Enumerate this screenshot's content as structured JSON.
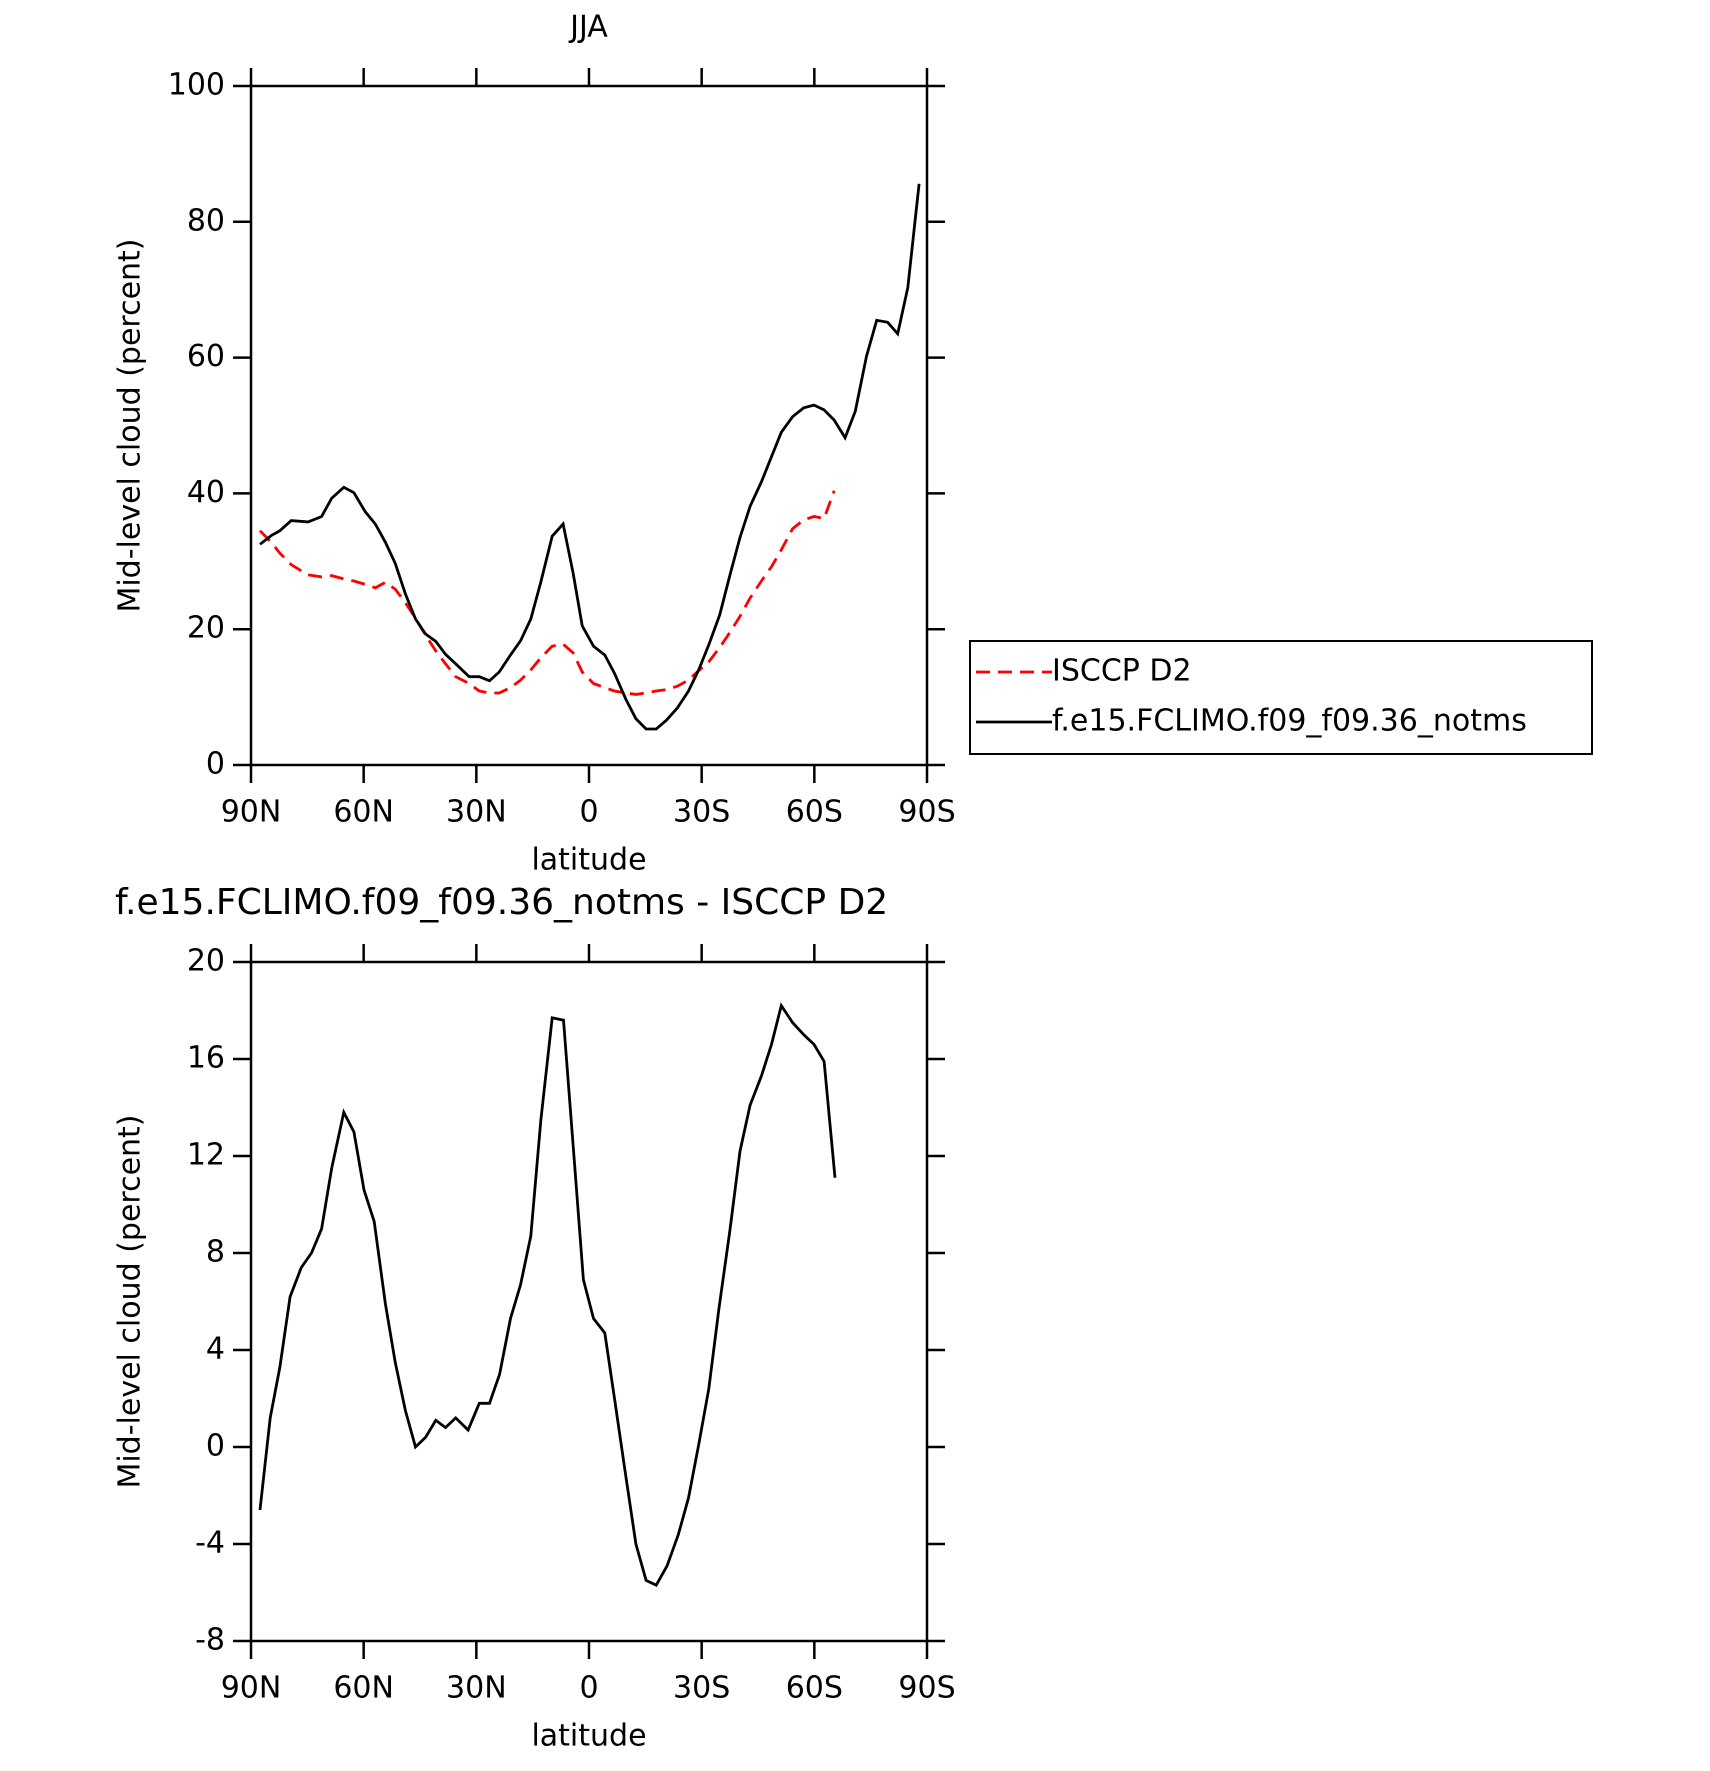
{
  "chart_data": [
    {
      "type": "line",
      "title": "JJA",
      "xlabel": "latitude",
      "ylabel": "Mid-level cloud (percent)",
      "x": [
        87.6,
        84.6,
        82.3,
        79.3,
        74.8,
        71.2,
        68.5,
        65.3,
        62.6,
        59.6,
        56.9,
        54.2,
        51.6,
        48.9,
        46.2,
        43.5,
        40.8,
        38.2,
        35.5,
        31.9,
        29.2,
        26.5,
        23.9,
        20.9,
        18.2,
        15.5,
        12.8,
        9.8,
        6.9,
        4.2,
        1.8,
        -1.2,
        -4.2,
        -6.8,
        -9.8,
        -12.5,
        -15.2,
        -17.9,
        -20.6,
        -23.5,
        -26.5,
        -29.2,
        -31.9,
        -34.8,
        -37.5,
        -40.2,
        -42.9,
        -45.9,
        -48.6,
        -51.2,
        -54.2,
        -57.2,
        -59.9,
        -62.6,
        -65.3,
        -68.2,
        -70.9,
        -73.9,
        -76.6,
        -79.5,
        -82.2,
        -84.9,
        -87.9
      ],
      "series": [
        {
          "name": "ISCCP D2",
          "color": "#ff0000",
          "dash": "dashed",
          "values": [
            34.5,
            32.8,
            31.2,
            29.5,
            28,
            27.7,
            27.9,
            27.4,
            27.1,
            26.6,
            26.1,
            26.9,
            25.9,
            23.9,
            21.6,
            19.1,
            16.8,
            14.9,
            13,
            12,
            10.9,
            10.6,
            10.6,
            11.4,
            12.5,
            14,
            15.8,
            17.5,
            17.8,
            16.5,
            13.7,
            12,
            11.4,
            10.9,
            10.6,
            10.4,
            10.6,
            10.9,
            11.1,
            11.6,
            12.5,
            13.9,
            15.2,
            17.3,
            19.5,
            21.9,
            24.6,
            27.1,
            29.2,
            31.7,
            34.8,
            36.1,
            36.6,
            36.3,
            40.4,
            null,
            null,
            null,
            null,
            null,
            null,
            null,
            null
          ]
        },
        {
          "name": "f.e15.FCLIMO.f09_f09.36_notms",
          "color": "#000000",
          "dash": "solid",
          "values": [
            32.5,
            33.8,
            34.5,
            36,
            35.8,
            36.6,
            39.3,
            40.9,
            40.1,
            37.3,
            35.5,
            32.8,
            29.7,
            25.2,
            21.5,
            19.3,
            18.2,
            16.3,
            14.9,
            13,
            13,
            12.4,
            13.7,
            16.2,
            18.3,
            21.5,
            27,
            33.7,
            35.5,
            28.2,
            20.5,
            17.5,
            16.2,
            13.5,
            9.7,
            6.8,
            5.3,
            5.3,
            6.6,
            8.4,
            10.9,
            14,
            17.7,
            22.1,
            27.9,
            33.5,
            38.1,
            41.7,
            45.4,
            49,
            51.3,
            52.6,
            53,
            52.3,
            50.8,
            48.2,
            52.1,
            60.2,
            65.5,
            65.2,
            63.5,
            70.3,
            85.6
          ]
        }
      ],
      "xlim": [
        90,
        -90
      ],
      "xticks": [
        {
          "value": 90,
          "label": "90N"
        },
        {
          "value": 60,
          "label": "60N"
        },
        {
          "value": 30,
          "label": "30N"
        },
        0,
        {
          "value": -30,
          "label": "30S"
        },
        {
          "value": -60,
          "label": "60S"
        },
        {
          "value": -90,
          "label": "90S"
        }
      ],
      "ylim": [
        0,
        100
      ],
      "yticks": [
        0,
        20,
        40,
        60,
        80,
        100
      ],
      "legend": "right"
    },
    {
      "type": "line",
      "title": "f.e15.FCLIMO.f09_f09.36_notms - ISCCP D2",
      "xlabel": "latitude",
      "ylabel": "Mid-level cloud (percent)",
      "x": [
        87.6,
        84.9,
        82.3,
        79.6,
        76.6,
        73.9,
        71.2,
        68.5,
        65.3,
        62.6,
        59.9,
        57.2,
        54.2,
        51.6,
        48.9,
        46.2,
        43.5,
        40.8,
        38.2,
        35.5,
        32.2,
        29.2,
        26.5,
        23.8,
        20.9,
        18.2,
        15.5,
        12.8,
        9.8,
        6.8,
        4.2,
        1.5,
        -1.2,
        -4.2,
        -6.8,
        -9.8,
        -12.5,
        -15.2,
        -17.9,
        -20.8,
        -23.8,
        -26.5,
        -29.2,
        -31.9,
        -34.6,
        -37.5,
        -40.2,
        -42.9,
        -45.9,
        -48.6,
        -51.2,
        -54.2,
        -57.2,
        -59.9,
        -62.6,
        -65.5
      ],
      "values": [
        -2.6,
        1.2,
        3.3,
        6.2,
        7.4,
        8,
        9,
        11.5,
        13.8,
        13,
        10.6,
        9.3,
        5.9,
        3.5,
        1.5,
        0,
        0.4,
        1.1,
        0.8,
        1.2,
        0.7,
        1.8,
        1.8,
        3,
        5.3,
        6.7,
        8.7,
        13.5,
        17.7,
        17.6,
        12.4,
        6.9,
        5.3,
        4.7,
        2,
        -1.2,
        -4,
        -5.5,
        -5.7,
        -4.9,
        -3.6,
        -2.1,
        0.1,
        2.4,
        5.7,
        8.9,
        12.2,
        14.1,
        15.3,
        16.6,
        18.2,
        17.5,
        17,
        16.6,
        15.9,
        11.1
      ],
      "color": "#000000",
      "xlim": [
        90,
        -90
      ],
      "xticks": [
        {
          "value": 90,
          "label": "90N"
        },
        {
          "value": 60,
          "label": "60N"
        },
        {
          "value": 30,
          "label": "30N"
        },
        0,
        {
          "value": -30,
          "label": "30S"
        },
        {
          "value": -60,
          "label": "60S"
        },
        {
          "value": -90,
          "label": "90S"
        }
      ],
      "ylim": [
        -8,
        20
      ],
      "yticks": [
        -8,
        -4,
        0,
        4,
        8,
        12,
        16,
        20
      ]
    }
  ]
}
